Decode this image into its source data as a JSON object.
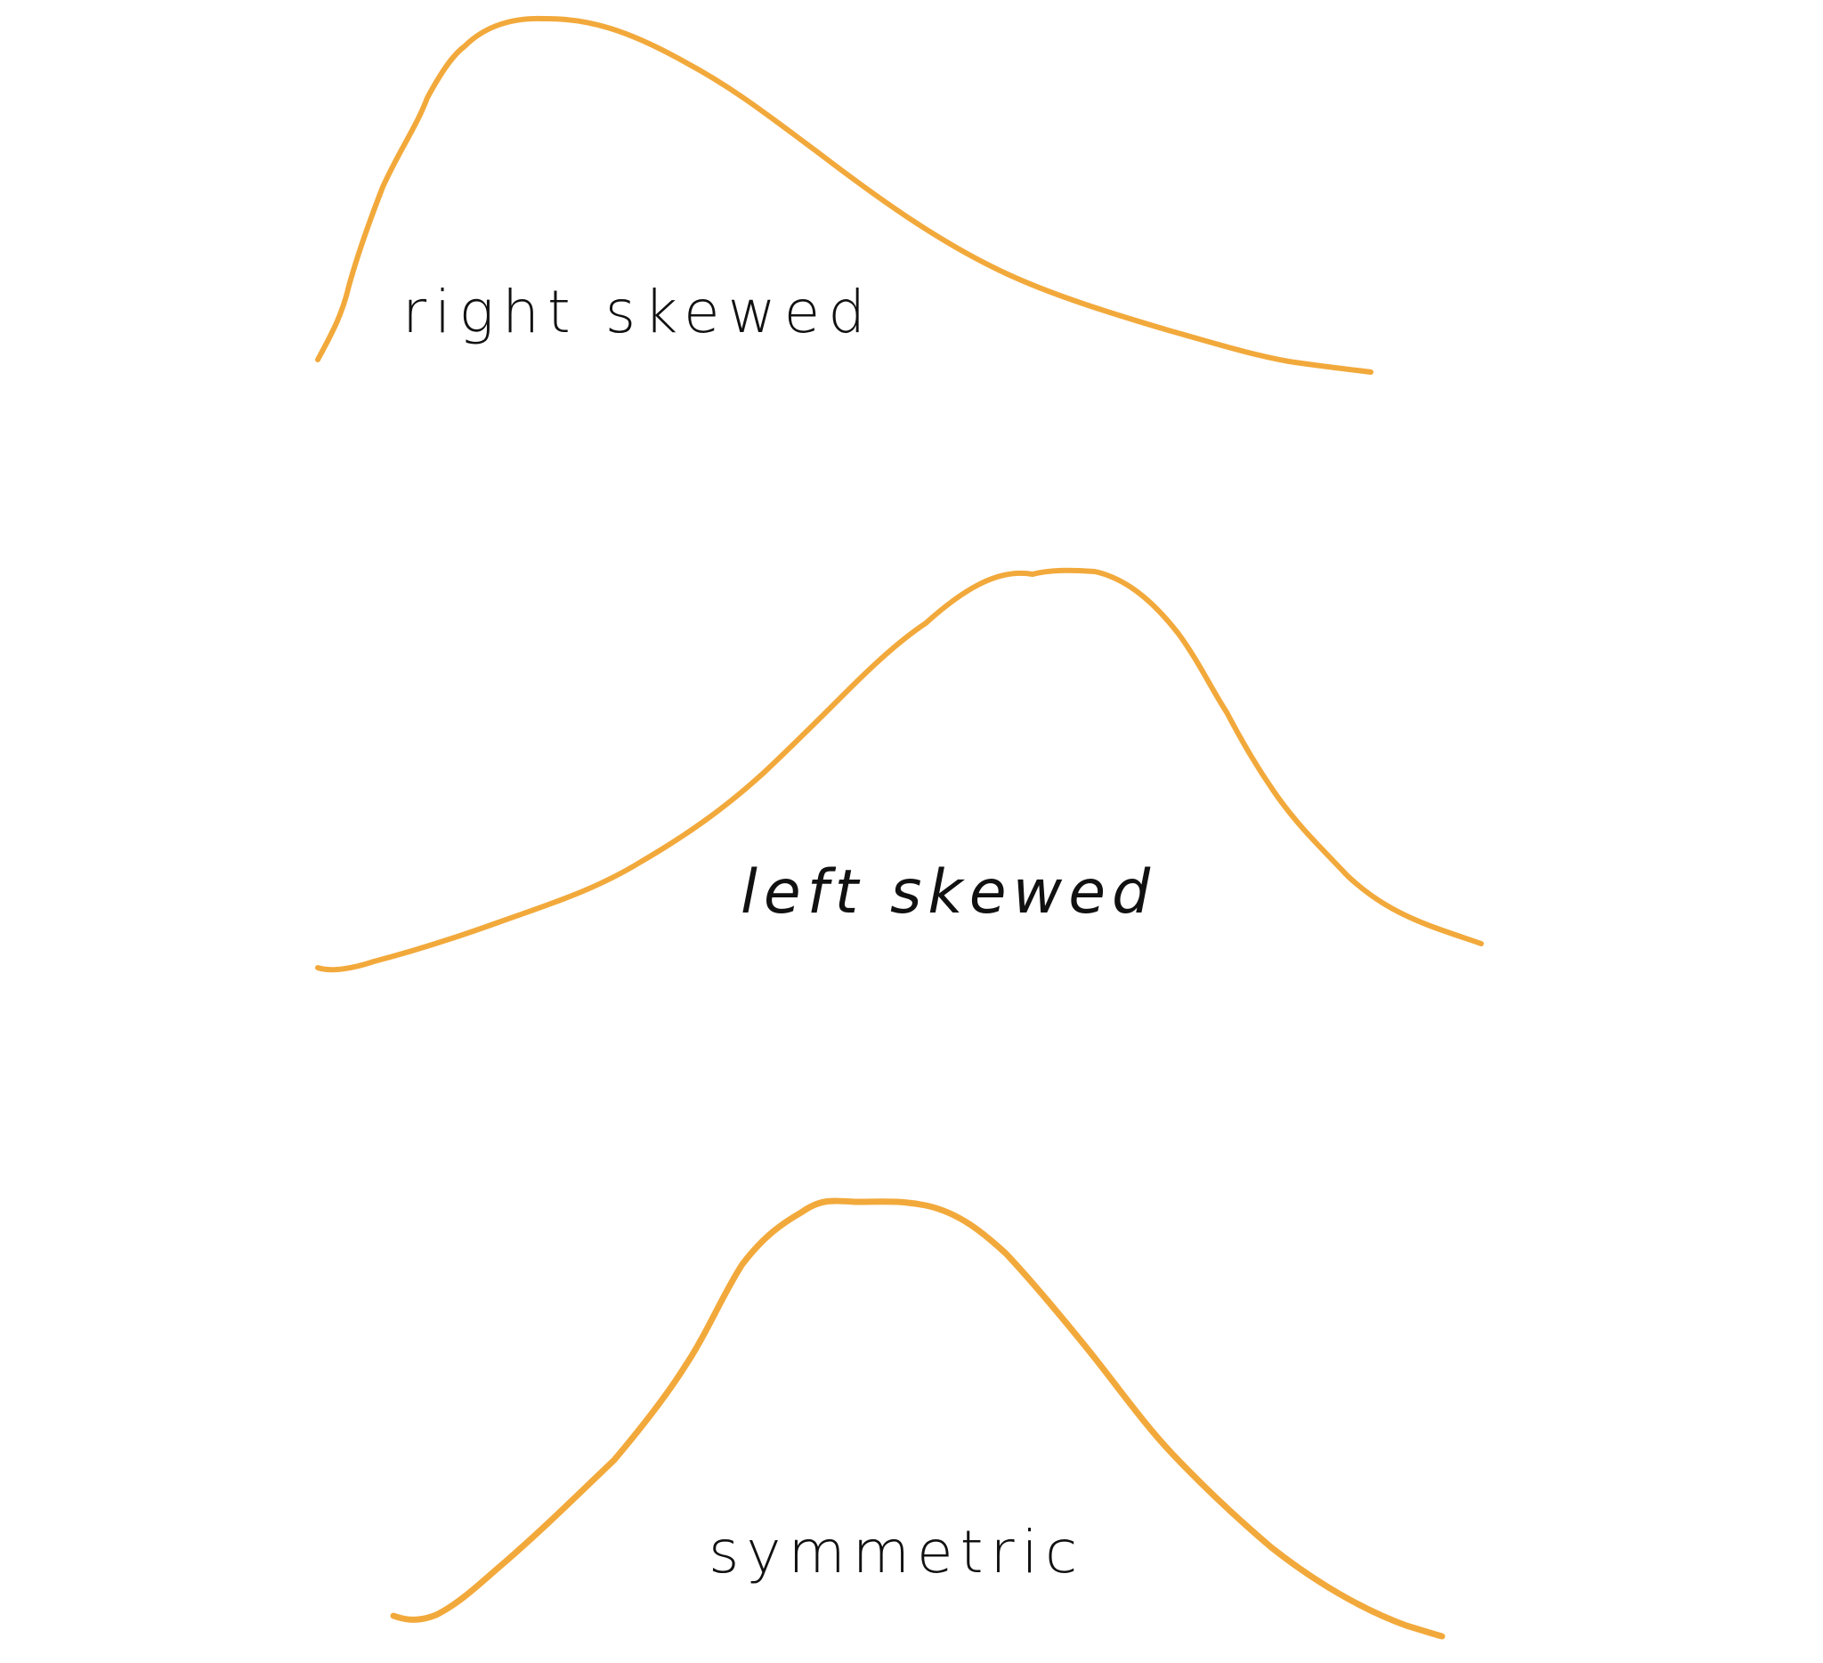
{
  "curve_color": "#F2A93B",
  "text_color": "#111111",
  "distributions": [
    {
      "id": "right-skewed",
      "label": "right skewed"
    },
    {
      "id": "left-skewed",
      "label": "left skewed"
    },
    {
      "id": "symmetric",
      "label": "symmetric"
    }
  ]
}
